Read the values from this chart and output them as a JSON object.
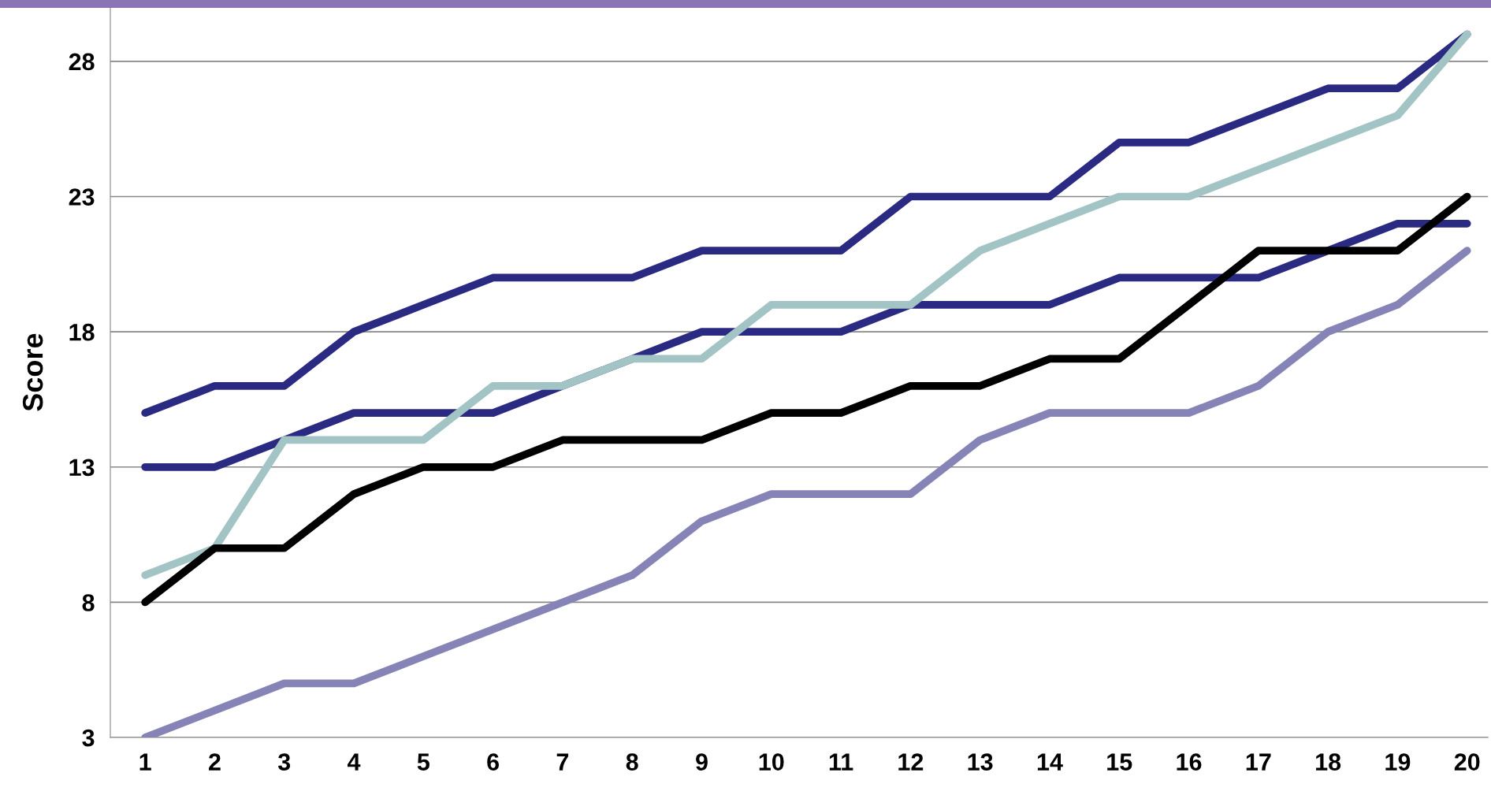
{
  "chart_data": {
    "type": "line",
    "ylabel": "Score",
    "categories": [
      "1",
      "2",
      "3",
      "4",
      "5",
      "6",
      "7",
      "8",
      "9",
      "10",
      "11",
      "12",
      "13",
      "14",
      "15",
      "16",
      "17",
      "18",
      "19",
      "20"
    ],
    "series": [
      {
        "color": "#2b2a82",
        "values": [
          15,
          16,
          16,
          18,
          19,
          20,
          20,
          20,
          21,
          21,
          21,
          23,
          23,
          23,
          25,
          25,
          26,
          27,
          27,
          29
        ]
      },
      {
        "color": "#2b2a82",
        "values": [
          13,
          13,
          14,
          15,
          15,
          15,
          16,
          17,
          18,
          18,
          18,
          19,
          19,
          19,
          20,
          20,
          20,
          21,
          22,
          22
        ]
      },
      {
        "color": "#a3c4c4",
        "values": [
          9,
          10,
          14,
          14,
          14,
          16,
          16,
          17,
          17,
          19,
          19,
          19,
          21,
          22,
          23,
          23,
          24,
          25,
          26,
          29
        ]
      },
      {
        "color": "#8683b6",
        "values": [
          3,
          4,
          5,
          5,
          6,
          7,
          8,
          9,
          11,
          12,
          12,
          12,
          14,
          15,
          15,
          15,
          16,
          18,
          19,
          21
        ]
      },
      {
        "color": "#000000",
        "values": [
          8,
          10,
          10,
          12,
          13,
          13,
          14,
          14,
          14,
          15,
          15,
          16,
          16,
          17,
          17,
          19,
          21,
          21,
          21,
          23
        ]
      }
    ],
    "ylim": [
      3,
      30
    ],
    "yticks": [
      3,
      8,
      13,
      18,
      23,
      28
    ],
    "grid": "y",
    "marker": "none",
    "line_style": "solid",
    "legend": false
  }
}
